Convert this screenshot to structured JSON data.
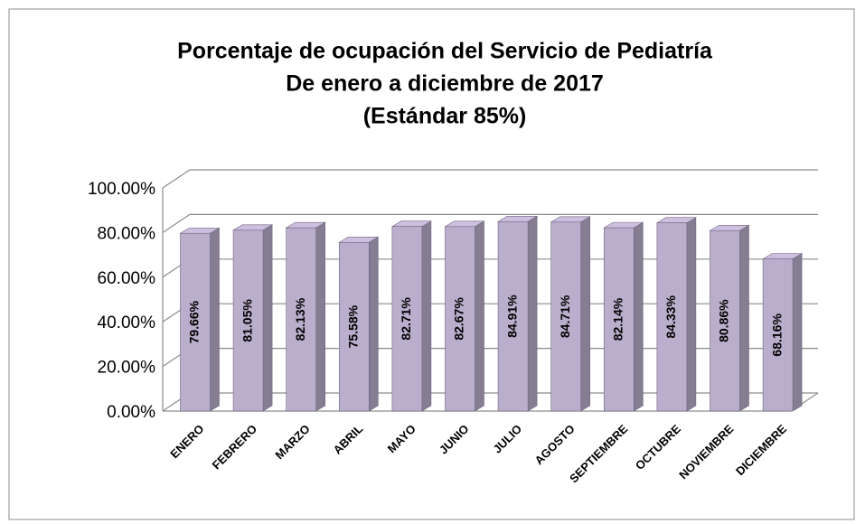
{
  "chart_data": {
    "type": "bar3d",
    "title": [
      "Porcentaje de  ocupación del Servicio de Pediatría",
      "De enero a diciembre de 2017",
      "(Estándar 85%)"
    ],
    "categories": [
      "ENERO",
      "FEBRERO",
      "MARZO",
      "ABRIL",
      "MAYO",
      "JUNIO",
      "JULIO",
      "AGOSTO",
      "SEPTIEMBRE",
      "OCTUBRE",
      "NOVIEMBRE",
      "DICIEMBRE"
    ],
    "values": [
      79.66,
      81.05,
      82.13,
      75.58,
      82.71,
      82.67,
      84.91,
      84.71,
      82.14,
      84.33,
      80.86,
      68.16
    ],
    "value_labels": [
      "79.66%",
      "81.05%",
      "82.13%",
      "75.58%",
      "82.71%",
      "82.67%",
      "84.91%",
      "84.71%",
      "82.14%",
      "84.33%",
      "80.86%",
      "68.16%"
    ],
    "color": "#b9aecb",
    "ylim": [
      0,
      100
    ],
    "yticks": [
      {
        "value": 0,
        "label": "0.00%"
      },
      {
        "value": 20,
        "label": "20.00%"
      },
      {
        "value": 40,
        "label": "40.00%"
      },
      {
        "value": 60,
        "label": "60.00%"
      },
      {
        "value": 80,
        "label": "80.00%"
      },
      {
        "value": 100,
        "label": "100.00%"
      }
    ],
    "grid": true
  }
}
